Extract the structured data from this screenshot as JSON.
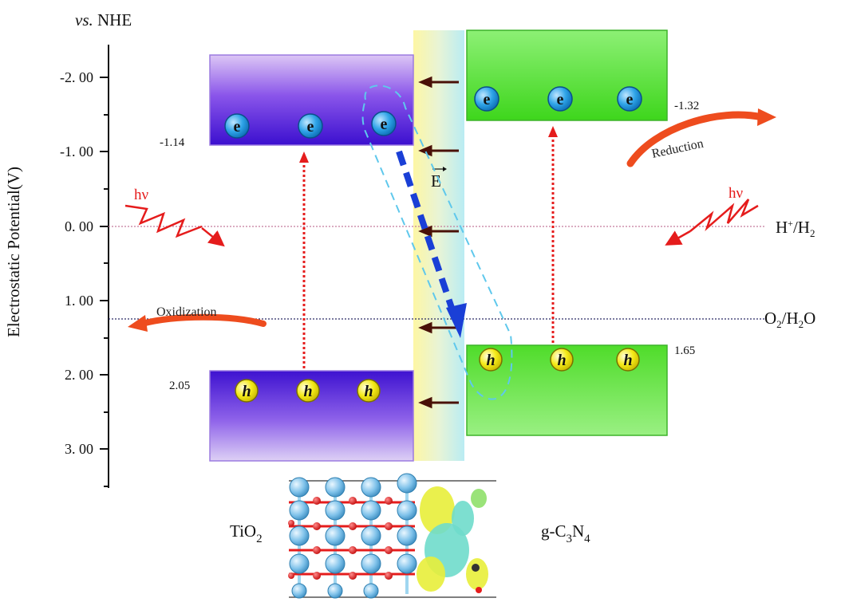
{
  "axis": {
    "title": "Electrostatic Potential(V)",
    "unit_label_italic": "vs.",
    "unit_label_rest": " NHE",
    "ticks": [
      "-2. 00",
      "-1. 00",
      "0. 00",
      "1. 00",
      "2. 00",
      "3. 00"
    ]
  },
  "tio2": {
    "label_main": "TiO",
    "label_sub": "2",
    "cb_value": "-1.14",
    "vb_value": "2.05"
  },
  "gc3n4": {
    "label_g": "g-C",
    "label_sub3": "3",
    "label_n": "N",
    "label_sub4": "4",
    "cb_value": "-1.32",
    "vb_value": "1.65"
  },
  "carriers": {
    "electron": "e",
    "hole": "h"
  },
  "labels": {
    "hv_left": "hν",
    "hv_right": "hν",
    "field": "E",
    "reduction": "Reduction",
    "oxidization": "Oxidization",
    "h_plus": "H",
    "h_plus_sup": "+",
    "h2_slash": "/H",
    "h2_sub": "2",
    "o2": "O",
    "o2_sub": "2",
    "h2o_slash": "/H",
    "h2o_sub": "2",
    "h2o_o": "O"
  },
  "colors": {
    "tio2_band": "#6a2ee0",
    "gc3n4_band": "#66e04a",
    "electron": "#2fa4e8",
    "hole": "#f1e80f",
    "photo_arrow": "#e51c1c",
    "transfer_arrow": "#1a3fd6",
    "curved_arrow": "#ee4c1e"
  }
}
